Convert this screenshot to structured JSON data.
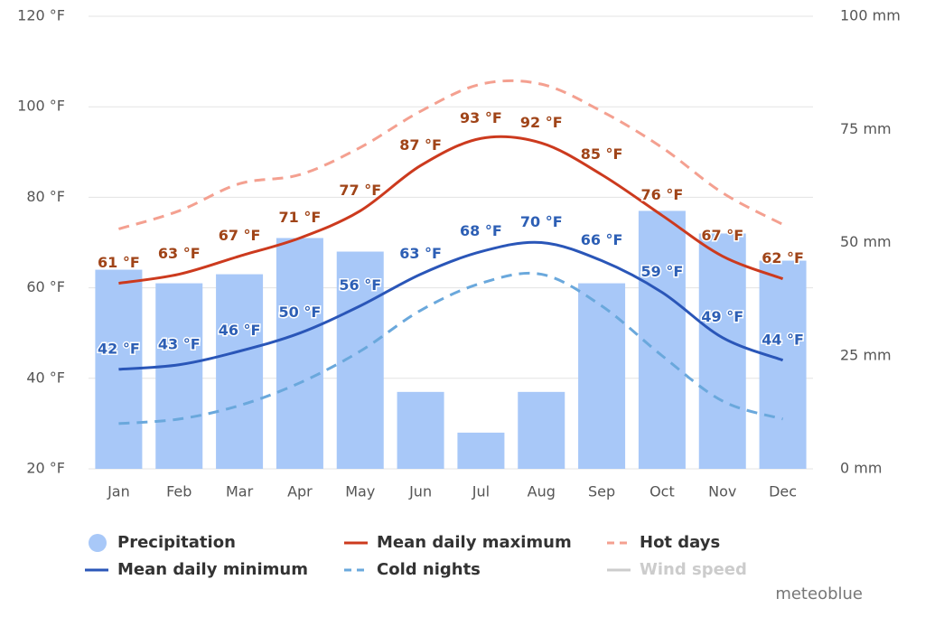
{
  "chart_data": {
    "type": "bar-line",
    "categories": [
      "Jan",
      "Feb",
      "Mar",
      "Apr",
      "May",
      "Jun",
      "Jul",
      "Aug",
      "Sep",
      "Oct",
      "Nov",
      "Dec"
    ],
    "ylim": [
      20,
      120
    ],
    "yticks": [
      {
        "value": 20,
        "label": "20 °F"
      },
      {
        "value": 40,
        "label": "40 °F"
      },
      {
        "value": 60,
        "label": "60 °F"
      },
      {
        "value": 80,
        "label": "80 °F"
      },
      {
        "value": 100,
        "label": "100 °F"
      },
      {
        "value": 120,
        "label": "120 °F"
      }
    ],
    "y2lim": [
      0,
      100
    ],
    "y2ticks": [
      {
        "value": 0,
        "label": "0 mm"
      },
      {
        "value": 25,
        "label": "25 mm"
      },
      {
        "value": 50,
        "label": "50 mm"
      },
      {
        "value": 75,
        "label": "75 mm"
      },
      {
        "value": 100,
        "label": "100 mm"
      }
    ],
    "grid": true,
    "series": [
      {
        "name": "Precipitation",
        "type": "bar",
        "axis": "y2",
        "color": "#a8c8f8",
        "values": [
          44,
          41,
          43,
          51,
          48,
          17,
          8,
          17,
          41,
          57,
          52,
          46
        ]
      },
      {
        "name": "Mean daily maximum",
        "type": "line",
        "color": "#cc3a1e",
        "dash": false,
        "label_color": "#a04418",
        "values": [
          61,
          63,
          67,
          71,
          77,
          87,
          93,
          92,
          85,
          76,
          67,
          62
        ],
        "value_labels": [
          "61 °F",
          "63 °F",
          "67 °F",
          "71 °F",
          "77 °F",
          "87 °F",
          "93 °F",
          "92 °F",
          "85 °F",
          "76 °F",
          "67 °F",
          "62 °F"
        ]
      },
      {
        "name": "Hot days",
        "type": "line",
        "color": "#f4a090",
        "dash": true,
        "values": [
          73,
          77,
          83,
          85,
          91,
          99,
          105,
          105,
          99,
          91,
          81,
          74
        ]
      },
      {
        "name": "Mean daily minimum",
        "type": "line",
        "color": "#2a56b8",
        "dash": false,
        "label_color": "#2d5fb5",
        "values": [
          42,
          43,
          46,
          50,
          56,
          63,
          68,
          70,
          66,
          59,
          49,
          44
        ],
        "value_labels": [
          "42 °F",
          "43 °F",
          "46 °F",
          "50 °F",
          "56 °F",
          "63 °F",
          "68 °F",
          "70 °F",
          "66 °F",
          "59 °F",
          "49 °F",
          "44 °F"
        ]
      },
      {
        "name": "Cold nights",
        "type": "line",
        "color": "#6aa8dc",
        "dash": true,
        "values": [
          30,
          31,
          34,
          39,
          46,
          55,
          61,
          63,
          56,
          45,
          35,
          31
        ]
      },
      {
        "name": "Wind speed",
        "type": "line",
        "color": "#c8c8c8",
        "dash": false,
        "disabled": true,
        "values": [
          null,
          null,
          null,
          null,
          null,
          null,
          null,
          null,
          null,
          null,
          null,
          null
        ]
      }
    ],
    "watermark": "meteoblue"
  }
}
